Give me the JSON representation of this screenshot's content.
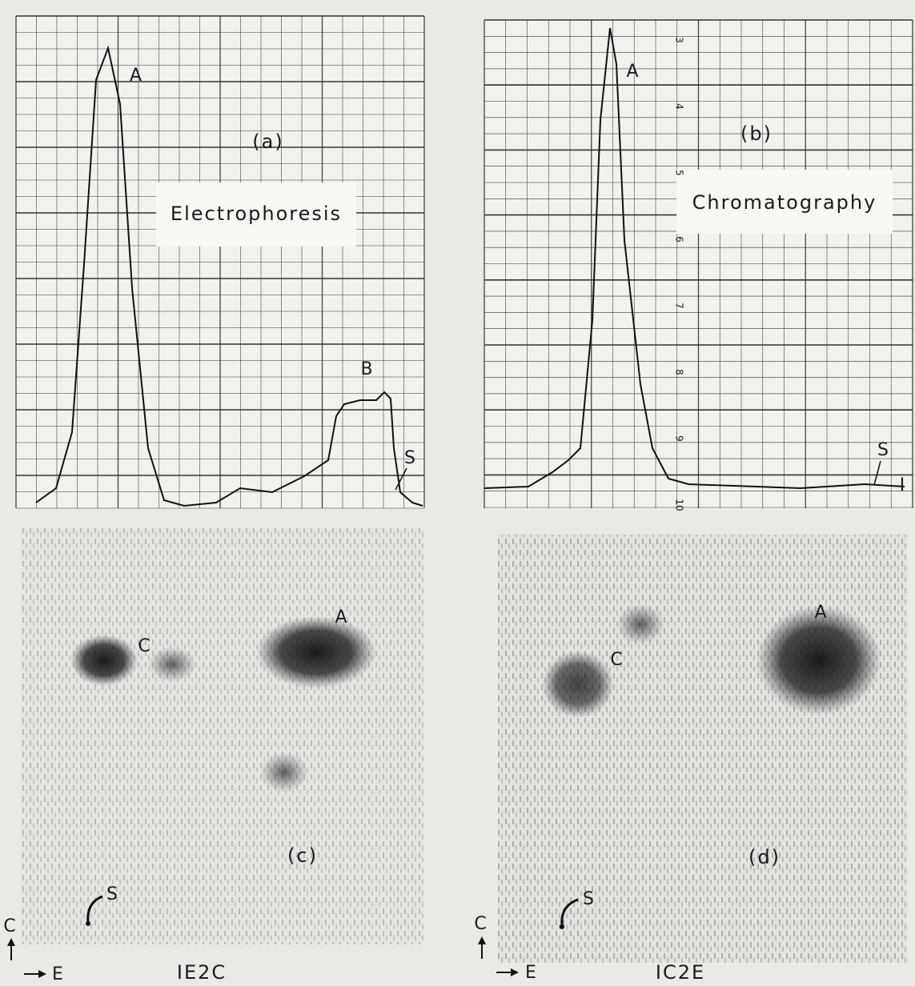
{
  "panel_a": {
    "label": "(a)",
    "title": "Electrophoresis",
    "peak_a": "A",
    "peak_b": "B",
    "start": "S"
  },
  "panel_b": {
    "label": "(b)",
    "title": "Chromatography",
    "peak_a": "A",
    "start": "S",
    "end_mark": "I",
    "scale": [
      "3",
      "4",
      "5",
      "6",
      "7",
      "8",
      "9",
      "10"
    ]
  },
  "panel_c": {
    "label": "(c)",
    "spot_a": "A",
    "spot_c": "C",
    "start": "S",
    "axis_vertical": "C",
    "axis_horizontal": "E",
    "code": "IE2C"
  },
  "panel_d": {
    "label": "(d)",
    "spot_a": "A",
    "spot_c": "C",
    "start": "S",
    "axis_vertical": "C",
    "axis_horizontal": "E",
    "code": "IC2E"
  }
}
